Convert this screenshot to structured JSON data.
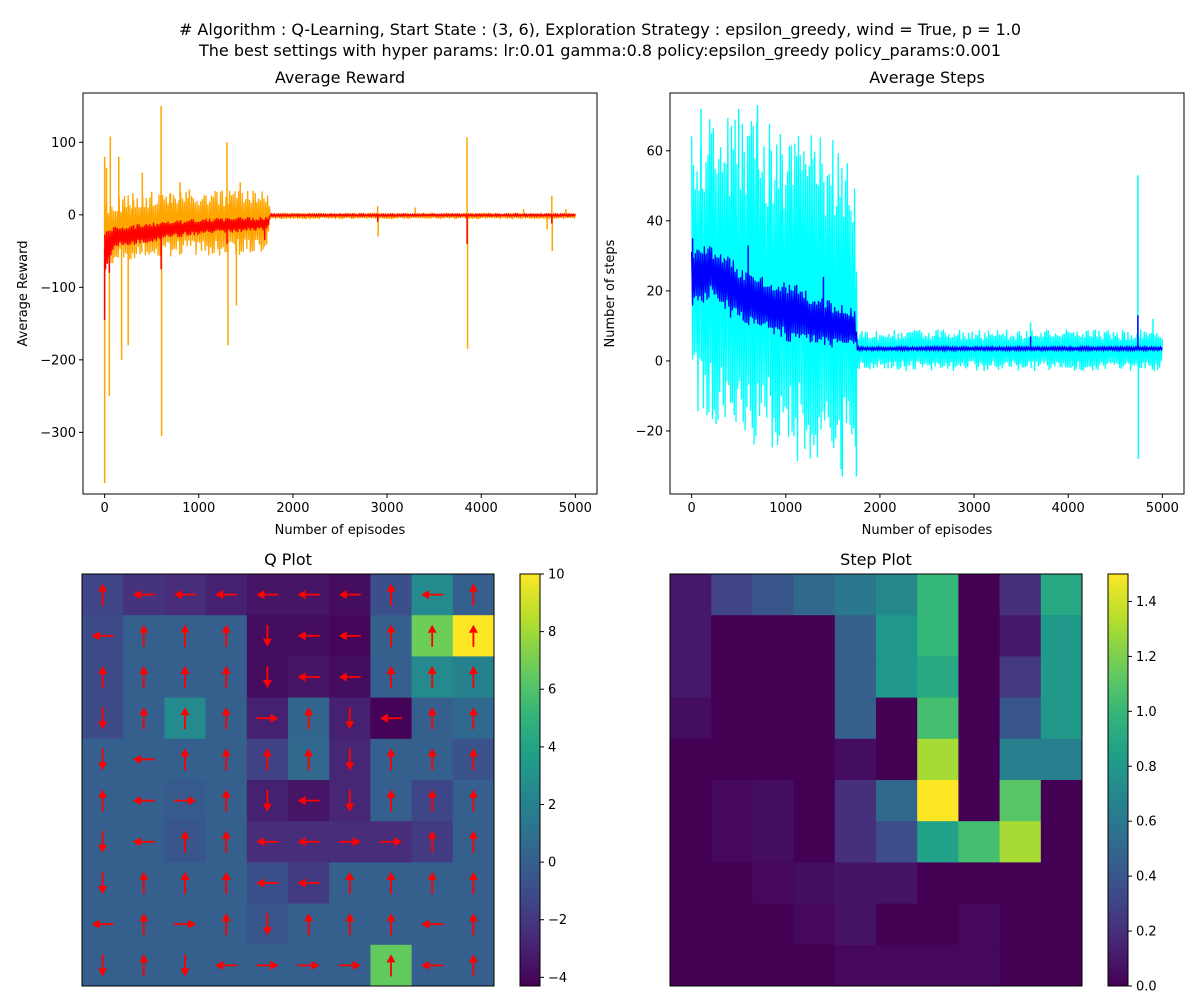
{
  "suptitle": {
    "line1": "# Algorithm : Q-Learning, Start State : (3, 6), Exploration Strategy : epsilon_greedy, wind = True, p = 1.0",
    "line2": "The best settings with hyper params: lr:0.01 gamma:0.8 policy:epsilon_greedy policy_params:0.001"
  },
  "chart_data": [
    {
      "type": "line",
      "title": "Average Reward",
      "xlabel": "Number of episodes",
      "ylabel": "Average Reward",
      "xlim": [
        -230,
        5230
      ],
      "ylim": [
        -385,
        168
      ],
      "xticks": [
        0,
        1000,
        2000,
        3000,
        4000,
        5000
      ],
      "yticks": [
        100,
        0,
        -100,
        -200,
        -300
      ],
      "ytick_labels": [
        "100",
        "0",
        "−100",
        "−200",
        "−300"
      ],
      "series": [
        {
          "color": "#ffa500",
          "band": [
            {
              "x": 0,
              "lo": -75,
              "hi": 20
            },
            {
              "x": 250,
              "lo": -62,
              "hi": 28
            },
            {
              "x": 500,
              "lo": -58,
              "hi": 30
            },
            {
              "x": 750,
              "lo": -58,
              "hi": 32
            },
            {
              "x": 1000,
              "lo": -58,
              "hi": 33
            },
            {
              "x": 1250,
              "lo": -56,
              "hi": 34
            },
            {
              "x": 1500,
              "lo": -55,
              "hi": 34
            },
            {
              "x": 1730,
              "lo": -55,
              "hi": 34
            },
            {
              "x": 1760,
              "lo": -6,
              "hi": 3
            },
            {
              "x": 5000,
              "lo": -6,
              "hi": 3
            }
          ],
          "spikes": [
            [
              0,
              -370
            ],
            [
              0,
              80
            ],
            [
              20,
              65
            ],
            [
              60,
              108
            ],
            [
              50,
              -250
            ],
            [
              150,
              80
            ],
            [
              180,
              -200
            ],
            [
              250,
              -180
            ],
            [
              300,
              30
            ],
            [
              400,
              58
            ],
            [
              500,
              32
            ],
            [
              600,
              150
            ],
            [
              605,
              -305
            ],
            [
              700,
              30
            ],
            [
              800,
              45
            ],
            [
              900,
              35
            ],
            [
              1300,
              100
            ],
            [
              1310,
              -180
            ],
            [
              1400,
              -125
            ],
            [
              1440,
              45
            ],
            [
              1600,
              30
            ],
            [
              2900,
              12
            ],
            [
              2905,
              -30
            ],
            [
              3300,
              10
            ],
            [
              3850,
              107
            ],
            [
              3855,
              -185
            ],
            [
              4450,
              8
            ],
            [
              4700,
              -20
            ],
            [
              4750,
              26
            ],
            [
              4755,
              -50
            ],
            [
              4900,
              8
            ]
          ]
        },
        {
          "color": "#ff0000",
          "band": [
            {
              "x": 0,
              "lo": -80,
              "hi": -10
            },
            {
              "x": 100,
              "lo": -45,
              "hi": -15
            },
            {
              "x": 300,
              "lo": -42,
              "hi": -13
            },
            {
              "x": 500,
              "lo": -38,
              "hi": -10
            },
            {
              "x": 700,
              "lo": -32,
              "hi": -8
            },
            {
              "x": 1000,
              "lo": -28,
              "hi": -5
            },
            {
              "x": 1300,
              "lo": -25,
              "hi": -3
            },
            {
              "x": 1730,
              "lo": -22,
              "hi": -2
            },
            {
              "x": 1760,
              "lo": -2,
              "hi": 1
            },
            {
              "x": 5000,
              "lo": -2,
              "hi": 1
            }
          ],
          "spikes": [
            [
              0,
              -145
            ],
            [
              10,
              -35
            ],
            [
              50,
              -80
            ],
            [
              600,
              -75
            ],
            [
              1300,
              -40
            ],
            [
              1700,
              -35
            ],
            [
              2900,
              -10
            ],
            [
              3850,
              -40
            ],
            [
              4750,
              -12
            ]
          ]
        }
      ]
    },
    {
      "type": "line",
      "title": "Average Steps",
      "xlabel": "Number of episodes",
      "ylabel": "Number of steps",
      "xlim": [
        -230,
        5230
      ],
      "ylim": [
        -38,
        76.5
      ],
      "xticks": [
        0,
        1000,
        2000,
        3000,
        4000,
        5000
      ],
      "yticks": [
        60,
        40,
        20,
        0,
        -20
      ],
      "ytick_labels": [
        "60",
        "40",
        "20",
        "0",
        "−20"
      ],
      "series": [
        {
          "color": "#00ffff",
          "band": [
            {
              "x": 0,
              "lo": -10,
              "hi": 68
            },
            {
              "x": 100,
              "lo": -20,
              "hi": 70
            },
            {
              "x": 400,
              "lo": -24,
              "hi": 70
            },
            {
              "x": 800,
              "lo": -28,
              "hi": 68
            },
            {
              "x": 1200,
              "lo": -30,
              "hi": 66
            },
            {
              "x": 1500,
              "lo": -32,
              "hi": 64
            },
            {
              "x": 1740,
              "lo": -33,
              "hi": 62
            },
            {
              "x": 1760,
              "lo": -3,
              "hi": 9
            },
            {
              "x": 5000,
              "lo": -3,
              "hi": 9
            }
          ],
          "spikes": [
            [
              100,
              72
            ],
            [
              500,
              72
            ],
            [
              700,
              73
            ],
            [
              1600,
              -33
            ],
            [
              1750,
              -33
            ],
            [
              3600,
              11
            ],
            [
              4740,
              53
            ],
            [
              4745,
              -28
            ],
            [
              4900,
              12
            ]
          ]
        },
        {
          "color": "#0000ff",
          "band": [
            {
              "x": 0,
              "lo": 14,
              "hi": 33
            },
            {
              "x": 200,
              "lo": 18,
              "hi": 33
            },
            {
              "x": 500,
              "lo": 10,
              "hi": 28
            },
            {
              "x": 800,
              "lo": 7,
              "hi": 25
            },
            {
              "x": 1100,
              "lo": 5,
              "hi": 22
            },
            {
              "x": 1400,
              "lo": 4,
              "hi": 18
            },
            {
              "x": 1740,
              "lo": 3,
              "hi": 15
            },
            {
              "x": 1760,
              "lo": 3,
              "hi": 4
            },
            {
              "x": 5000,
              "lo": 3,
              "hi": 4
            }
          ],
          "spikes": [
            [
              10,
              35
            ],
            [
              600,
              33
            ],
            [
              1400,
              24
            ],
            [
              3600,
              7
            ],
            [
              4740,
              13
            ]
          ]
        }
      ]
    },
    {
      "type": "heatmap",
      "title": "Q Plot",
      "colorscale": "viridis",
      "vmin": -4.3,
      "vmax": 10,
      "colorbar_ticks": [
        10,
        8,
        6,
        4,
        2,
        0,
        -2,
        -4
      ],
      "colorbar_tick_labels": [
        "10",
        "8",
        "6",
        "4",
        "2",
        "0",
        "−2",
        "−4"
      ],
      "arrow_color": "#ff0000",
      "values": [
        [
          -1.3,
          -2.2,
          -2.5,
          -3.0,
          -3.5,
          -3.5,
          -3.8,
          -0.8,
          2.5,
          0.0
        ],
        [
          -1.0,
          0.0,
          0.0,
          0.0,
          -3.8,
          -3.8,
          -4.1,
          0.0,
          6.8,
          10.0
        ],
        [
          -1.0,
          0.0,
          0.0,
          0.0,
          -3.8,
          -3.5,
          -3.8,
          0.0,
          2.5,
          2.0
        ],
        [
          -1.0,
          0.0,
          2.5,
          0.0,
          -3.0,
          0.3,
          -3.0,
          -4.2,
          0.0,
          0.5
        ],
        [
          0.0,
          0.0,
          0.0,
          0.0,
          -1.5,
          0.5,
          -2.8,
          0.0,
          0.0,
          -0.6
        ],
        [
          0.0,
          0.0,
          -0.3,
          0.0,
          -3.0,
          -3.5,
          -2.8,
          0.0,
          -1.3,
          0.0
        ],
        [
          0.0,
          0.0,
          -0.5,
          0.0,
          -2.5,
          -2.5,
          -2.5,
          -2.5,
          -1.8,
          0.0
        ],
        [
          0.0,
          0.0,
          0.0,
          0.0,
          -0.8,
          -1.8,
          0.0,
          0.0,
          0.0,
          0.0
        ],
        [
          0.0,
          0.0,
          0.0,
          0.0,
          -0.5,
          0.0,
          0.0,
          0.0,
          0.0,
          0.0
        ],
        [
          0.0,
          0.0,
          0.0,
          0.0,
          0.0,
          0.0,
          0.0,
          6.5,
          0.0,
          0.0
        ]
      ],
      "arrows": [
        [
          "up",
          "left",
          "left",
          "left",
          "left",
          "left",
          "left",
          "up",
          "left",
          "up"
        ],
        [
          "left",
          "up",
          "up",
          "up",
          "down",
          "left",
          "left",
          "up",
          "up",
          "up"
        ],
        [
          "up",
          "up",
          "up",
          "up",
          "down",
          "left",
          "left",
          "up",
          "up",
          "up"
        ],
        [
          "down",
          "up",
          "up",
          "up",
          "right",
          "up",
          "down",
          "left",
          "up",
          "up"
        ],
        [
          "down",
          "left",
          "up",
          "up",
          "up",
          "up",
          "down",
          "up",
          "up",
          "up"
        ],
        [
          "up",
          "left",
          "right",
          "up",
          "down",
          "left",
          "down",
          "up",
          "up",
          "up"
        ],
        [
          "down",
          "left",
          "up",
          "up",
          "left",
          "left",
          "right",
          "right",
          "up",
          "up"
        ],
        [
          "down",
          "up",
          "up",
          "up",
          "left",
          "left",
          "up",
          "up",
          "up",
          "up"
        ],
        [
          "left",
          "up",
          "right",
          "up",
          "down",
          "up",
          "up",
          "up",
          "left",
          "up"
        ],
        [
          "down",
          "up",
          "down",
          "left",
          "right",
          "right",
          "right",
          "up",
          "left",
          "up"
        ]
      ]
    },
    {
      "type": "heatmap",
      "title": "Step Plot",
      "colorscale": "viridis",
      "vmin": 0,
      "vmax": 1.5,
      "colorbar_ticks": [
        1.4,
        1.2,
        1.0,
        0.8,
        0.6,
        0.4,
        0.2,
        0.0
      ],
      "colorbar_tick_labels": [
        "1.4",
        "1.2",
        "1.0",
        "0.8",
        "0.6",
        "0.4",
        "0.2",
        "0.0"
      ],
      "values": [
        [
          0.1,
          0.3,
          0.4,
          0.5,
          0.6,
          0.7,
          1.0,
          0.0,
          0.2,
          0.9
        ],
        [
          0.1,
          0.0,
          0.0,
          0.0,
          0.45,
          0.8,
          1.0,
          0.0,
          0.1,
          0.8
        ],
        [
          0.1,
          0.0,
          0.0,
          0.0,
          0.45,
          0.8,
          0.9,
          0.0,
          0.25,
          0.8
        ],
        [
          0.05,
          0.0,
          0.0,
          0.0,
          0.45,
          0.0,
          1.05,
          0.0,
          0.4,
          0.8
        ],
        [
          0.0,
          0.0,
          0.0,
          0.0,
          0.05,
          0.0,
          1.3,
          0.0,
          0.65,
          0.65
        ],
        [
          0.0,
          0.03,
          0.05,
          0.0,
          0.2,
          0.5,
          1.5,
          0.0,
          1.1,
          0.0
        ],
        [
          0.0,
          0.03,
          0.05,
          0.0,
          0.2,
          0.35,
          0.85,
          1.05,
          1.3,
          0.0
        ],
        [
          0.0,
          0.0,
          0.03,
          0.05,
          0.08,
          0.08,
          0.0,
          0.0,
          0.0,
          0.0
        ],
        [
          0.0,
          0.0,
          0.0,
          0.03,
          0.08,
          0.0,
          0.0,
          0.03,
          0.0,
          0.0
        ],
        [
          0.0,
          0.0,
          0.0,
          0.0,
          0.03,
          0.03,
          0.03,
          0.03,
          0.0,
          0.0
        ]
      ]
    }
  ]
}
